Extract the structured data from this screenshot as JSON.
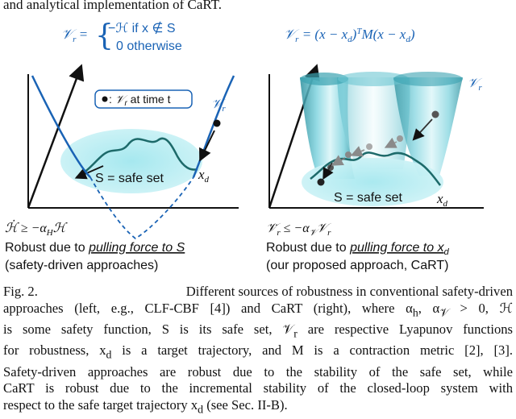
{
  "page": {
    "top_text": "and analytical implementation of CaRT."
  },
  "left_panel": {
    "equation_lhs": "𝒱",
    "equation_lhs_sub": "r",
    "equation_eq": "=",
    "case1": "−ℋ  if  x ∉ S",
    "case2": "0  otherwise",
    "legend_text": "𝒱",
    "legend_sub": "r",
    "legend_suffix": " at time t",
    "curve_label": "𝒱",
    "curve_label_sub": "r",
    "set_label": "S = safe set",
    "target_label": "x",
    "target_sub": "d",
    "condition": "ℋ̇ ≥ −α",
    "condition_sub": "H",
    "condition_end": "ℋ",
    "robust_prefix": "Robust due to ",
    "robust_emph": "pulling force to S",
    "robust_note": "(safety-driven approaches)"
  },
  "right_panel": {
    "equation": "𝒱",
    "equation_sub": "r",
    "equation_rest": " = (x − x",
    "equation_rest_sub": "d",
    "equation_rest2": ")",
    "equation_T": "T",
    "equation_rest3": "M(x − x",
    "equation_rest3_sub": "d",
    "equation_end": ")",
    "curve_label": "𝒱",
    "curve_label_sub": "r",
    "set_label": "S = safe set",
    "target_label": "x",
    "target_sub": "d",
    "condition": "𝒱̇",
    "condition_sub": "r",
    "condition_rest": " ≤ −α",
    "condition_rest_sub": "𝒱",
    "condition_end": "𝒱",
    "condition_end_sub": "r",
    "robust_prefix": "Robust due to ",
    "robust_emph": "pulling force to x",
    "robust_emph_sub": "d",
    "robust_note": "(our proposed approach, CaRT)"
  },
  "caption": {
    "label": "Fig. 2.",
    "line0": "Different sources of robustness in conventional safety-driven",
    "line1": "approaches (left, e.g., CLF-CBF [4]) and CaRT (right), where α",
    "line1_sub": "h",
    "line1_mid": ", α",
    "line1_sub2": "𝒱",
    "line1_end": " > 0, ℋ",
    "line2": "is some safety function, S is its safe set, 𝒱",
    "line2_sub": "r",
    "line2_end": " are respective Lyapunov functions",
    "line3": "for robustness, x",
    "line3_sub": "d",
    "line3_end": " is a target trajectory, and M is a contraction metric [2], [3].",
    "line4": "Safety-driven approaches are robust due to the stability of the safe set, while",
    "line5": "CaRT is robust due to the incremental stability of the closed-loop system with",
    "line6": "respect to the safe target trajectory x",
    "line6_sub": "d",
    "line6_end": " (see Sec. II-B)."
  },
  "colors": {
    "accent_blue": "#1a63b5",
    "set_fill": "#8fe0ea",
    "set_fill_light": "#c7f0f5",
    "curve_green": "#1d6a6a",
    "funnel_dark": "#2a9aa8",
    "funnel_light": "#bfecf1",
    "arrow_gray": "#8a8a8a"
  }
}
